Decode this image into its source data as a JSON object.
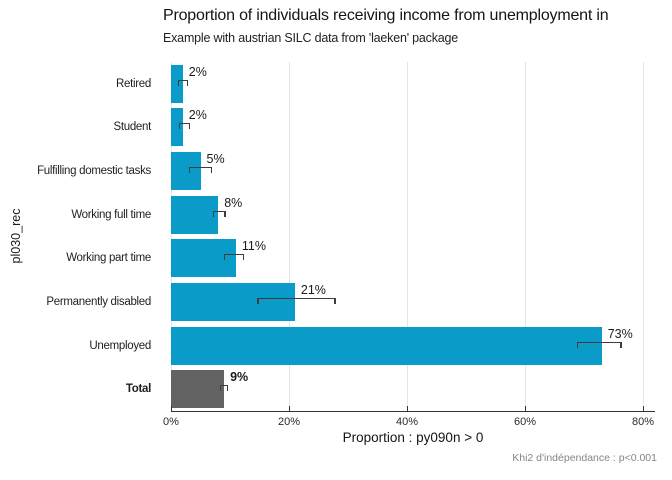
{
  "chart_data": {
    "type": "bar",
    "orientation": "horizontal",
    "title": "Proportion of individuals receiving income from unemployment in",
    "subtitle": "Example with austrian SILC data from 'laeken' package",
    "ylabel": "pl030_rec",
    "xlabel": "Proportion : py090n > 0",
    "caption": "Khi2 d'indépendance : p<0.001",
    "legend": "none",
    "grid": "vertical-major-only",
    "xlim": [
      0,
      81.5
    ],
    "x_ticks": [
      {
        "value": 0,
        "label": "0%"
      },
      {
        "value": 20,
        "label": "20%"
      },
      {
        "value": 40,
        "label": "40%"
      },
      {
        "value": 60,
        "label": "60%"
      },
      {
        "value": 80,
        "label": "80%"
      }
    ],
    "rows": [
      {
        "category": "Retired",
        "value": 2,
        "label": "2%",
        "ci": [
          1.2,
          2.9
        ],
        "bold": false
      },
      {
        "category": "Student",
        "value": 2,
        "label": "2%",
        "ci": [
          1.3,
          3.3
        ],
        "bold": false
      },
      {
        "category": "Fulfilling domestic tasks",
        "value": 5,
        "label": "5%",
        "ci": [
          3.0,
          7.0
        ],
        "bold": false
      },
      {
        "category": "Working full time",
        "value": 8,
        "label": "8%",
        "ci": [
          7.1,
          9.3
        ],
        "bold": false
      },
      {
        "category": "Working part time",
        "value": 11,
        "label": "11%",
        "ci": [
          9.0,
          12.4
        ],
        "bold": false
      },
      {
        "category": "Permanently disabled",
        "value": 21,
        "label": "21%",
        "ci": [
          14.6,
          27.9
        ],
        "bold": false
      },
      {
        "category": "Unemployed",
        "value": 73,
        "label": "73%",
        "ci": [
          68.8,
          76.4
        ],
        "bold": false
      },
      {
        "category": "Total",
        "value": 9,
        "label": "9%",
        "ci": [
          8.3,
          9.7
        ],
        "bold": true
      }
    ],
    "colors": {
      "bar": "#0b9bc8",
      "total_bar": "#636363",
      "gridline": "#e4e4e4",
      "axis": "#333333",
      "errorbar": "#3d3d3d",
      "caption": "#858585"
    }
  }
}
